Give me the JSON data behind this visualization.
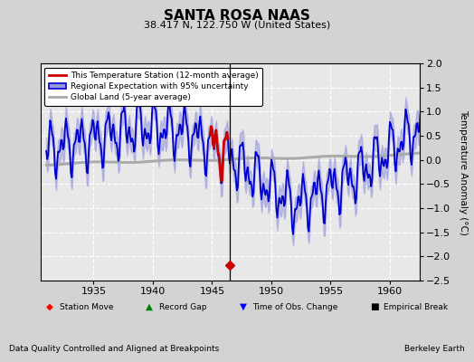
{
  "title": "SANTA ROSA NAAS",
  "subtitle": "38.417 N, 122.750 W (United States)",
  "xlabel_note": "Data Quality Controlled and Aligned at Breakpoints",
  "credit": "Berkeley Earth",
  "ylabel": "Temperature Anomaly (°C)",
  "xlim": [
    1930.5,
    1962.5
  ],
  "ylim": [
    -2.5,
    2.0
  ],
  "yticks": [
    -2.5,
    -2.0,
    -1.5,
    -1.0,
    -0.5,
    0.0,
    0.5,
    1.0,
    1.5,
    2.0
  ],
  "xticks": [
    1935,
    1940,
    1945,
    1950,
    1955,
    1960
  ],
  "vertical_line_x": 1946.5,
  "station_move_x": 1946.5,
  "station_move_y": -2.18,
  "bg_color": "#d3d3d3",
  "plot_bg_color": "#e8e8e8",
  "grid_color": "#ffffff",
  "regional_line_color": "#0000cc",
  "regional_fill_color": "#9999dd",
  "station_line_color": "#cc0000",
  "global_line_color": "#aaaaaa",
  "station_move_marker_color": "#cc0000",
  "legend_bg": "#ffffff",
  "bottom_box_bg": "#ffffff"
}
